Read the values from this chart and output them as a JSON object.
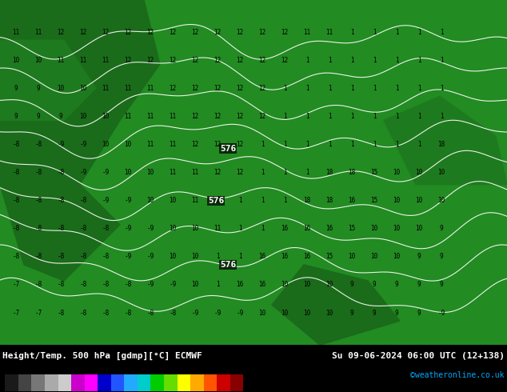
{
  "title_left": "Height/Temp. 500 hPa [gdmp][°C] ECMWF",
  "title_right": "Su 09-06-2024 06:00 UTC (12+138)",
  "credit": "©weatheronline.co.uk",
  "colorbar_values": [
    -54,
    -48,
    -42,
    -39,
    -30,
    -24,
    -18,
    -12,
    -8,
    0,
    8,
    12,
    18,
    24,
    30,
    36,
    42,
    48,
    54
  ],
  "colorbar_colors": [
    "#1a1a1a",
    "#363636",
    "#555555",
    "#888888",
    "#aaaaaa",
    "#cc00cc",
    "#ff00ff",
    "#0000cc",
    "#0055ff",
    "#00aaff",
    "#00ffff",
    "#00dd00",
    "#88ff00",
    "#ffff00",
    "#ffaa00",
    "#ff5500",
    "#dd0000",
    "#880000",
    "#440000"
  ],
  "map_bg_color": "#228B22",
  "contour_line_color": "#ffffff",
  "number_color": "#000000",
  "label_576_color": "#ffffff",
  "label_576_bg": "#000000",
  "fig_width": 6.34,
  "fig_height": 4.9,
  "dpi": 100
}
